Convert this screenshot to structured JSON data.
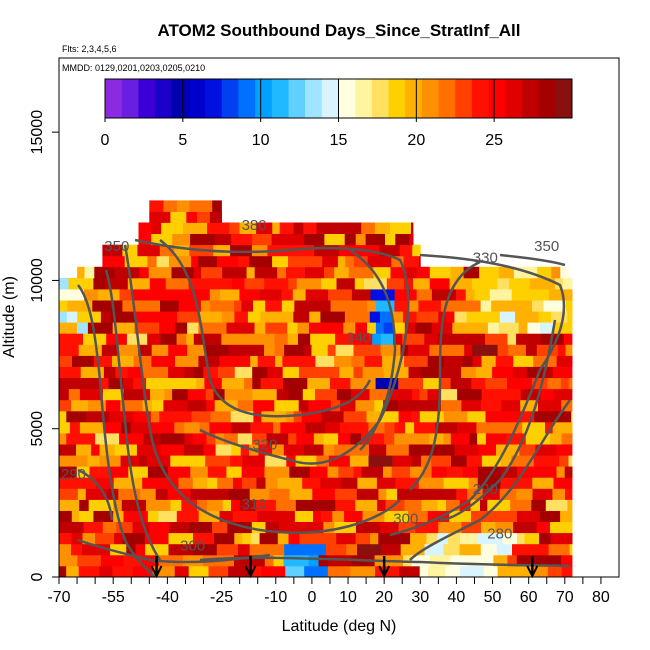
{
  "colors": {
    "contour": "#555555",
    "background": "#ffffff"
  },
  "chart_data": {
    "type": "heatmap",
    "title": "ATOM2 Southbound Days_Since_StratInf_All",
    "subtitle_flights": "Flts: 2,3,4,5,6",
    "subtitle_dates": "MMDD: 0129,0201,0203,0205,0210",
    "xlabel": "Latitude (deg N)",
    "ylabel": "Altitude (m)",
    "xlim": [
      -70,
      85
    ],
    "ylim": [
      0,
      17500
    ],
    "x_ticks": [
      -70,
      -55,
      -40,
      -25,
      -10,
      0,
      10,
      20,
      30,
      40,
      50,
      60,
      70,
      80
    ],
    "x_minor_ticks": [
      -65,
      -60,
      -50,
      -45,
      -35,
      -30,
      -20,
      -15,
      -5,
      5,
      15,
      25,
      35,
      45,
      55,
      65,
      75
    ],
    "y_ticks": [
      0,
      5000,
      10000,
      15000
    ],
    "colorbar": {
      "range": [
        0,
        30
      ],
      "ticks": [
        0,
        5,
        10,
        15,
        20,
        25
      ],
      "colors": [
        "#8a2be2",
        "#6a1fe0",
        "#3b00d8",
        "#1a00c8",
        "#0000b0",
        "#0000cc",
        "#0010e0",
        "#0040f0",
        "#0070ff",
        "#00a0ff",
        "#20b8ff",
        "#60d0ff",
        "#a0e4ff",
        "#d8f4ff",
        "#ffffe0",
        "#fff5a0",
        "#ffe060",
        "#ffd000",
        "#ffb000",
        "#ff9000",
        "#ff7000",
        "#ff4000",
        "#ff1000",
        "#ff0000",
        "#e00000",
        "#c00000",
        "#a50000",
        "#8a1010"
      ]
    },
    "contour_labels": [
      {
        "text": "350",
        "x": -54,
        "y": 11000
      },
      {
        "text": "380",
        "x": -16,
        "y": 11700
      },
      {
        "text": "330",
        "x": 48,
        "y": 10600
      },
      {
        "text": "350",
        "x": 65,
        "y": 11000
      },
      {
        "text": "340",
        "x": 13,
        "y": 7900
      },
      {
        "text": "320",
        "x": -13,
        "y": 4300
      },
      {
        "text": "310",
        "x": -16,
        "y": 2300
      },
      {
        "text": "300",
        "x": -33,
        "y": 900
      },
      {
        "text": "290",
        "x": -66,
        "y": 3300
      },
      {
        "text": "290",
        "x": 48,
        "y": 2800
      },
      {
        "text": "300",
        "x": 26,
        "y": 1800
      },
      {
        "text": "280",
        "x": 52,
        "y": 1300
      }
    ],
    "flight_markers_x": [
      -43,
      -17,
      20,
      61
    ]
  }
}
